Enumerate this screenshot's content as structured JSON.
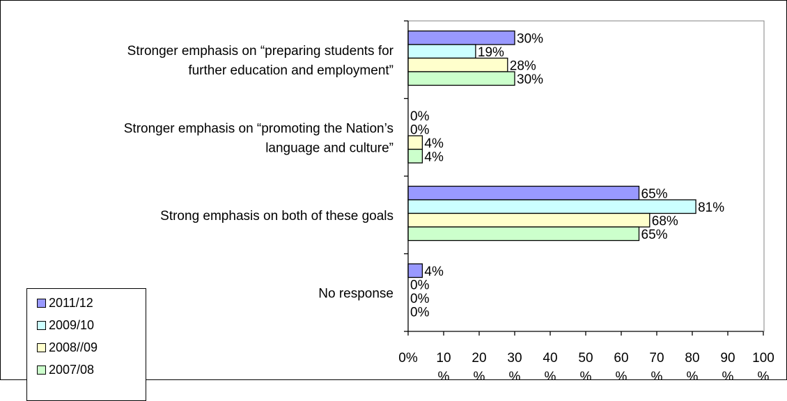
{
  "chart_data": {
    "type": "bar",
    "orientation": "horizontal",
    "categories": [
      [
        "Stronger emphasis on “preparing students for",
        "further education and employment”"
      ],
      [
        "Stronger emphasis on “promoting the Nation’s",
        "language and culture”"
      ],
      [
        "Strong emphasis on both of these goals"
      ],
      [
        "No response"
      ]
    ],
    "series": [
      {
        "name": "2011/12",
        "values": [
          30,
          0,
          65,
          4
        ],
        "labels": [
          "30%",
          "0%",
          "65%",
          "4%"
        ],
        "color": "#9999ff"
      },
      {
        "name": "2009/10",
        "values": [
          19,
          0,
          81,
          0
        ],
        "labels": [
          "19%",
          "0%",
          "81%",
          "0%"
        ],
        "color": "#ccffff"
      },
      {
        "name": "2008//09",
        "values": [
          28,
          4,
          68,
          0
        ],
        "labels": [
          "28%",
          "4%",
          "68%",
          "0%"
        ],
        "color": "#ffffcc"
      },
      {
        "name": "2007/08",
        "values": [
          30,
          4,
          65,
          0
        ],
        "labels": [
          "30%",
          "4%",
          "65%",
          "0%"
        ],
        "color": "#ccffcc"
      }
    ],
    "xlim": [
      0,
      100
    ],
    "xticks": [
      0,
      10,
      20,
      30,
      40,
      50,
      60,
      70,
      80,
      90,
      100
    ],
    "xtick_labels": [
      "0%",
      "10 %",
      "20 %",
      "30 %",
      "40 %",
      "50 %",
      "60 %",
      "70 %",
      "80 %",
      "90 %",
      "100 %"
    ],
    "legend": {
      "placement": "bottom-left",
      "items": [
        "2011/12",
        "2009/10",
        "2008//09",
        "2007/08"
      ]
    },
    "grid": false
  }
}
